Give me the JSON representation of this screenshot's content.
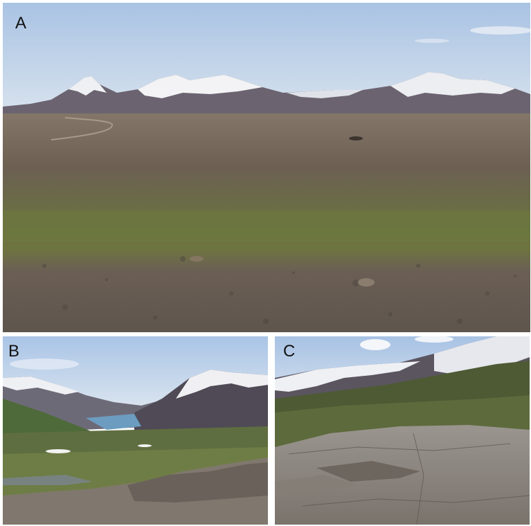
{
  "panels": [
    {
      "id": "A",
      "label": "A"
    },
    {
      "id": "B",
      "label": "B"
    },
    {
      "id": "C",
      "label": "C"
    }
  ],
  "colors": {
    "sky": "#bcd2ea",
    "snow": "#f2f2f4",
    "mountain_rock": "#6e6570",
    "gravel": "#6f655c",
    "moss_green": "#6f7d3c",
    "fjord_water": "#6f9fc0"
  }
}
